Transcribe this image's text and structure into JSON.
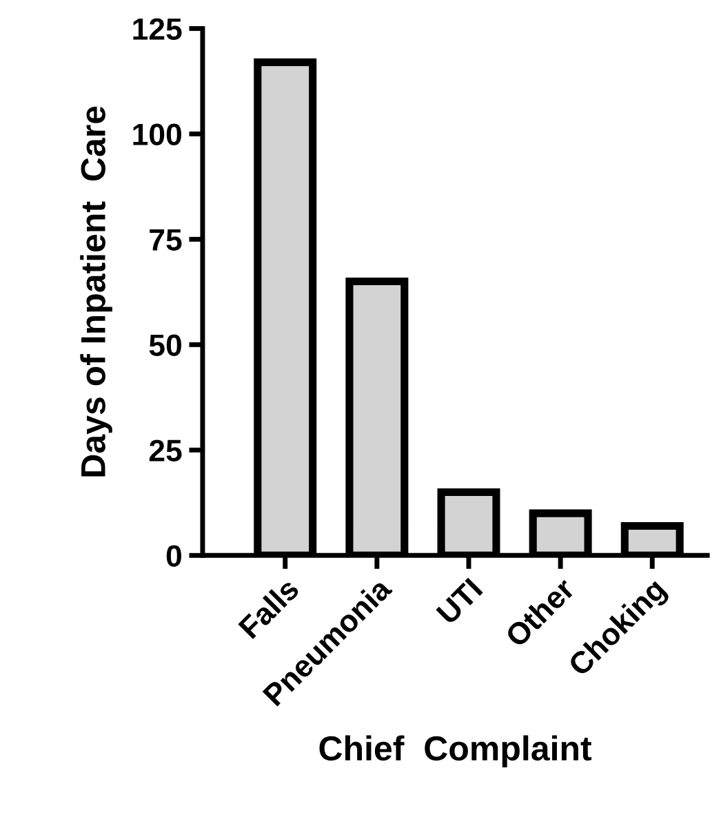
{
  "chart_data": {
    "type": "bar",
    "xlabel": "Chief  Complaint",
    "ylabel": "Days of Inpatient  Care",
    "categories": [
      "Falls",
      "Pneumonia",
      "UTI",
      "Other",
      "Choking"
    ],
    "values": [
      117,
      65,
      15,
      10,
      7
    ],
    "color": "#d3d3d3",
    "ylim": [
      0,
      125
    ],
    "yticks": [
      0,
      25,
      50,
      75,
      100,
      125
    ],
    "grid": false
  }
}
